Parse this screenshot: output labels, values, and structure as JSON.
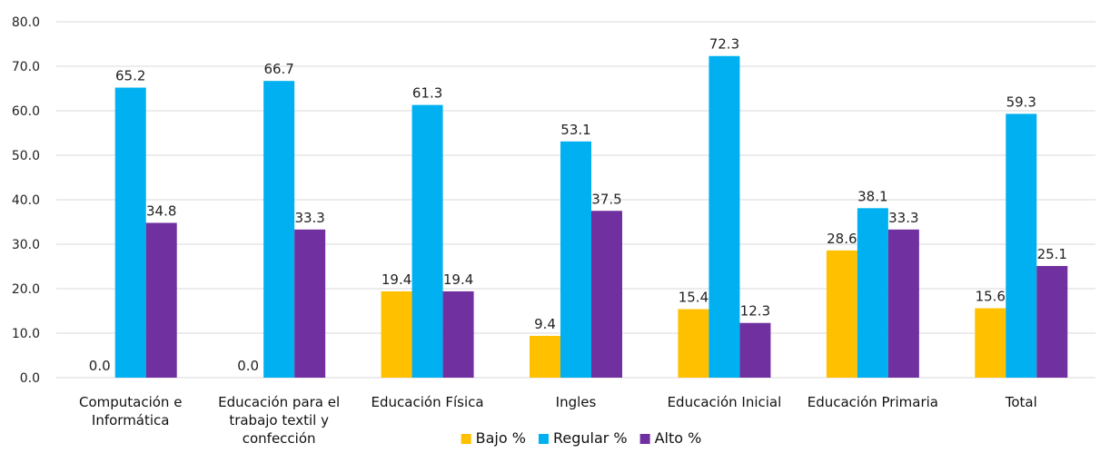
{
  "chart_data": {
    "type": "bar",
    "categories": [
      [
        "Computación e",
        "Informática"
      ],
      [
        "Educación para el",
        "trabajo textil y",
        "confección"
      ],
      [
        "Educación Física"
      ],
      [
        "Ingles"
      ],
      [
        "Educación Inicial"
      ],
      [
        "Educación Primaria"
      ],
      [
        "Total"
      ]
    ],
    "series": [
      {
        "name": "Bajo %",
        "color": "#FFC000",
        "values": [
          0.0,
          0.0,
          19.4,
          9.4,
          15.4,
          28.6,
          15.6
        ]
      },
      {
        "name": "Regular %",
        "color": "#00B0F0",
        "values": [
          65.2,
          66.7,
          61.3,
          53.1,
          72.3,
          38.1,
          59.3
        ]
      },
      {
        "name": "Alto %",
        "color": "#7030A0",
        "values": [
          34.8,
          33.3,
          19.4,
          37.5,
          12.3,
          33.3,
          25.1
        ]
      }
    ],
    "ylim": [
      0,
      80
    ],
    "yticks": [
      "0.0",
      "10.0",
      "20.0",
      "30.0",
      "40.0",
      "50.0",
      "60.0",
      "70.0",
      "80.0"
    ],
    "grid": true,
    "legend": "bottom-center",
    "value_format": "one-decimal"
  }
}
